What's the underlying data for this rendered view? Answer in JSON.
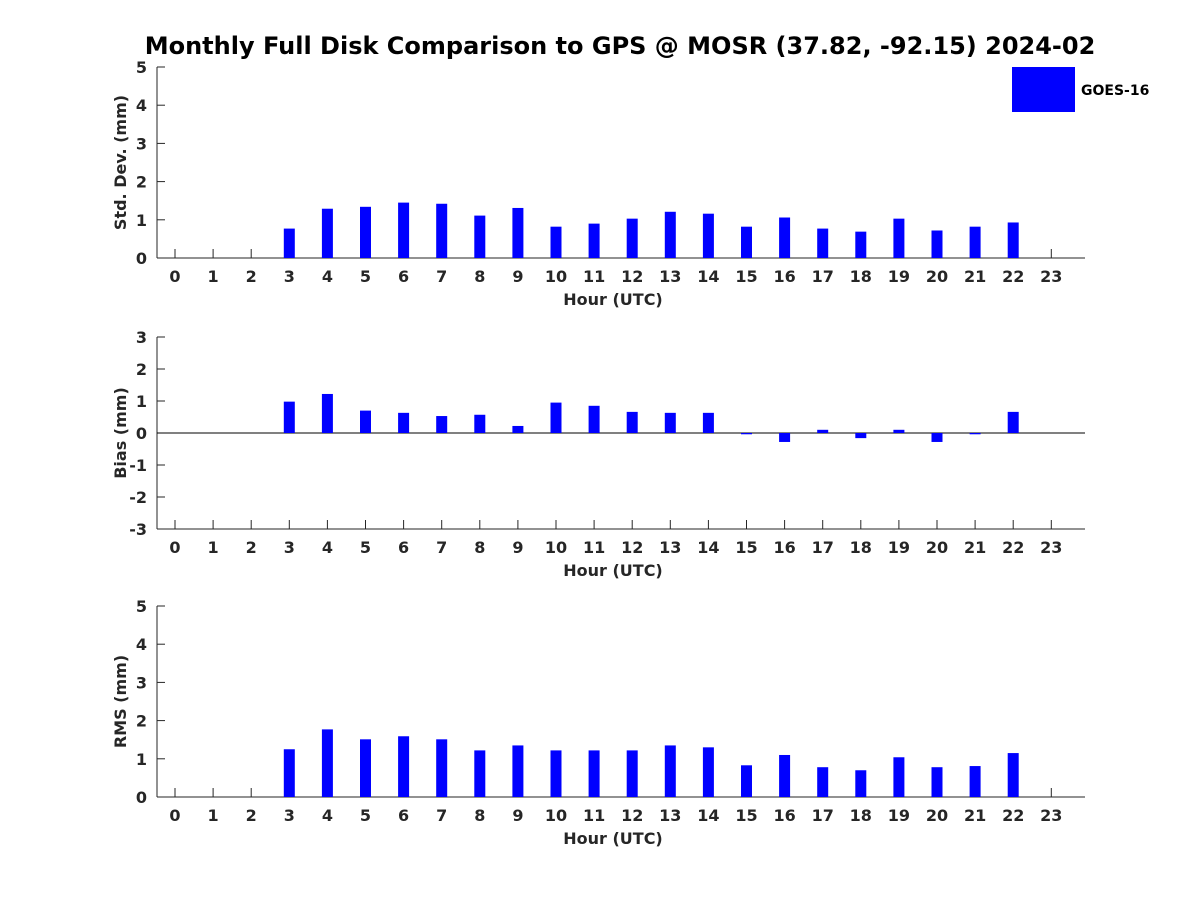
{
  "figure": {
    "title": "Monthly Full Disk Comparison to GPS @ MOSR (37.82, -92.15) 2024-02"
  },
  "legend": {
    "label": "GOES-16",
    "color": "#0000ff",
    "placement": "top-right"
  },
  "chart_data": [
    {
      "type": "bar",
      "ylabel": "Std. Dev. (mm)",
      "xlabel": "Hour (UTC)",
      "ylim": [
        0,
        5
      ],
      "yticks": [
        "0",
        "1",
        "2",
        "3",
        "4",
        "5"
      ],
      "categories": [
        "0",
        "1",
        "2",
        "3",
        "4",
        "5",
        "6",
        "7",
        "8",
        "9",
        "10",
        "11",
        "12",
        "13",
        "14",
        "15",
        "16",
        "17",
        "18",
        "19",
        "20",
        "21",
        "22",
        "23"
      ],
      "series": [
        {
          "name": "GOES-16",
          "color": "#0000ff",
          "values": [
            null,
            null,
            null,
            0.77,
            1.29,
            1.34,
            1.45,
            1.42,
            1.11,
            1.31,
            0.82,
            0.9,
            1.03,
            1.21,
            1.16,
            0.82,
            1.06,
            0.77,
            0.69,
            1.03,
            0.72,
            0.82,
            0.93,
            null
          ]
        }
      ]
    },
    {
      "type": "bar",
      "ylabel": "Bias (mm)",
      "xlabel": "Hour (UTC)",
      "ylim": [
        -3,
        3
      ],
      "yticks": [
        "-3",
        "-2",
        "-1",
        "0",
        "1",
        "2",
        "3"
      ],
      "categories": [
        "0",
        "1",
        "2",
        "3",
        "4",
        "5",
        "6",
        "7",
        "8",
        "9",
        "10",
        "11",
        "12",
        "13",
        "14",
        "15",
        "16",
        "17",
        "18",
        "19",
        "20",
        "21",
        "22",
        "23"
      ],
      "series": [
        {
          "name": "GOES-16",
          "color": "#0000ff",
          "values": [
            null,
            null,
            null,
            0.98,
            1.22,
            0.7,
            0.63,
            0.53,
            0.57,
            0.22,
            0.95,
            0.85,
            0.66,
            0.63,
            0.63,
            -0.04,
            -0.28,
            0.1,
            -0.16,
            0.1,
            -0.28,
            -0.04,
            0.66,
            null
          ]
        }
      ]
    },
    {
      "type": "bar",
      "ylabel": "RMS (mm)",
      "xlabel": "Hour (UTC)",
      "ylim": [
        0,
        5
      ],
      "yticks": [
        "0",
        "1",
        "2",
        "3",
        "4",
        "5"
      ],
      "categories": [
        "0",
        "1",
        "2",
        "3",
        "4",
        "5",
        "6",
        "7",
        "8",
        "9",
        "10",
        "11",
        "12",
        "13",
        "14",
        "15",
        "16",
        "17",
        "18",
        "19",
        "20",
        "21",
        "22",
        "23"
      ],
      "series": [
        {
          "name": "GOES-16",
          "color": "#0000ff",
          "values": [
            null,
            null,
            null,
            1.25,
            1.77,
            1.51,
            1.59,
            1.51,
            1.22,
            1.35,
            1.22,
            1.22,
            1.22,
            1.35,
            1.3,
            0.83,
            1.1,
            0.78,
            0.7,
            1.04,
            0.78,
            0.81,
            1.15,
            null
          ]
        }
      ]
    }
  ]
}
